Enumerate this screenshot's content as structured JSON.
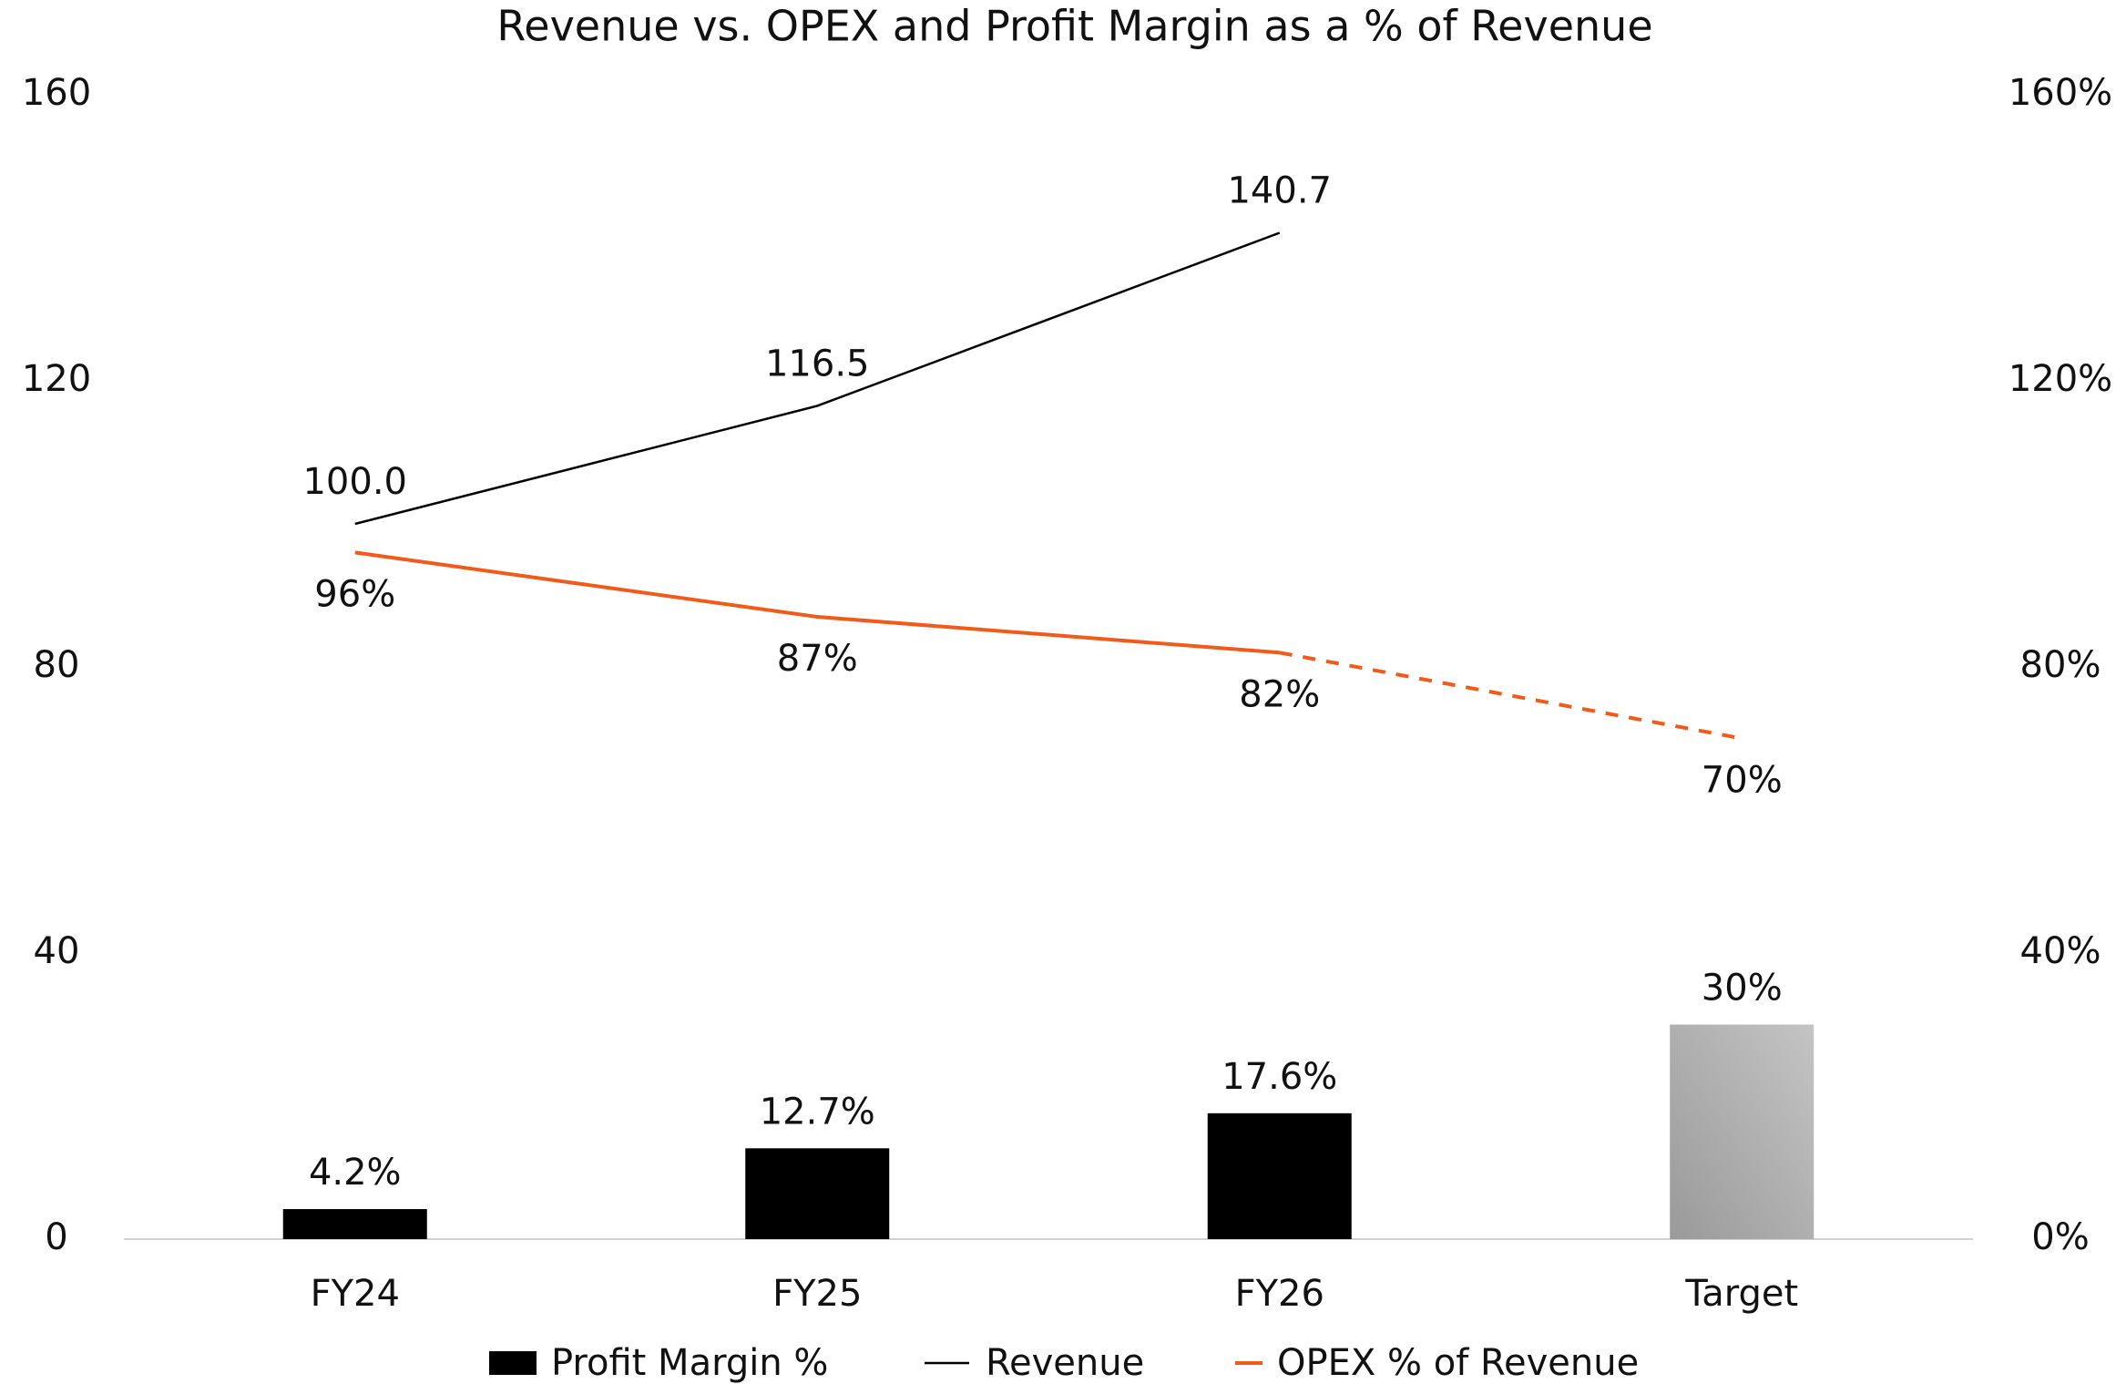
{
  "chart_data": {
    "type": "combo",
    "title": "Revenue vs. OPEX and Profit Margin as a % of Revenue",
    "categories": [
      "FY24",
      "FY25",
      "FY26",
      "Target"
    ],
    "series": [
      {
        "name": "Profit Margin %",
        "kind": "bar",
        "axis": "y2",
        "colors": [
          "#000000",
          "#000000",
          "#000000",
          "#c4c4c4"
        ],
        "gradient_last": true,
        "values": [
          4.2,
          12.7,
          17.6,
          30
        ],
        "value_labels": [
          "4.2%",
          "12.7%",
          "17.6%",
          "30%"
        ]
      },
      {
        "name": "Revenue",
        "kind": "line",
        "axis": "y",
        "color": "#000000",
        "values": [
          100,
          116.5,
          140.7,
          null
        ],
        "value_labels": [
          "100.0",
          "116.5",
          "140.7",
          null
        ]
      },
      {
        "name": "OPEX % of Revenue",
        "kind": "line",
        "axis": "y2",
        "color": "#f05a1a",
        "dashed_last": true,
        "values": [
          96,
          87,
          82,
          70
        ],
        "value_labels": [
          "96%",
          "87%",
          "82%",
          "70%"
        ]
      }
    ],
    "ylim": [
      0,
      160
    ],
    "yticks": [
      0,
      40,
      80,
      120,
      160
    ],
    "y2lim": [
      0,
      160
    ],
    "y2ticks": [
      {
        "value": 0,
        "label": "0%"
      },
      {
        "value": 40,
        "label": "40%"
      },
      {
        "value": 80,
        "label": "80%"
      },
      {
        "value": 120,
        "label": "120%"
      },
      {
        "value": 160,
        "label": "160%"
      }
    ],
    "legend": "bottom"
  }
}
